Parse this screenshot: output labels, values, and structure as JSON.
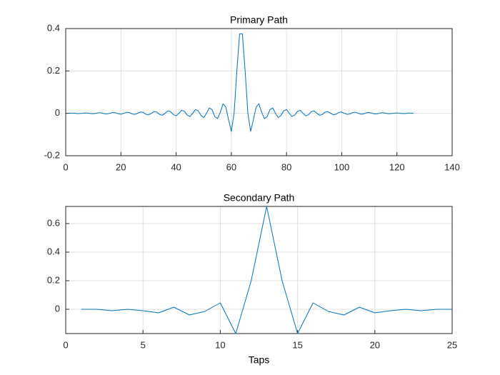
{
  "chart_data": [
    {
      "type": "line",
      "title": "Primary Path",
      "color": "#0072bd",
      "grid": true,
      "xlim": [
        0,
        140
      ],
      "xticks": [
        0,
        20,
        40,
        60,
        80,
        100,
        120,
        140
      ],
      "ylim": [
        -0.2,
        0.4
      ],
      "yticks": [
        -0.2,
        0,
        0.2,
        0.4
      ],
      "x": [
        1,
        2,
        3,
        4,
        5,
        6,
        7,
        8,
        9,
        10,
        11,
        12,
        13,
        14,
        15,
        16,
        17,
        18,
        19,
        20,
        21,
        22,
        23,
        24,
        25,
        26,
        27,
        28,
        29,
        30,
        31,
        32,
        33,
        34,
        35,
        36,
        37,
        38,
        39,
        40,
        41,
        42,
        43,
        44,
        45,
        46,
        47,
        48,
        49,
        50,
        51,
        52,
        53,
        54,
        55,
        56,
        57,
        58,
        59,
        60,
        61,
        62,
        63,
        64,
        65,
        66,
        67,
        68,
        69,
        70,
        71,
        72,
        73,
        74,
        75,
        76,
        77,
        78,
        79,
        80,
        81,
        82,
        83,
        84,
        85,
        86,
        87,
        88,
        89,
        90,
        91,
        92,
        93,
        94,
        95,
        96,
        97,
        98,
        99,
        100,
        101,
        102,
        103,
        104,
        105,
        106,
        107,
        108,
        109,
        110,
        111,
        112,
        113,
        114,
        115,
        116,
        117,
        118,
        119,
        120,
        121,
        122,
        123,
        124,
        125,
        126
      ],
      "values": [
        0,
        0.001,
        0.001,
        -0.001,
        -0.001,
        0,
        0.002,
        0.001,
        -0.001,
        -0.002,
        0,
        0.003,
        0.002,
        -0.002,
        -0.003,
        0,
        0.004,
        0.003,
        -0.002,
        -0.004,
        0,
        0.005,
        0.004,
        -0.003,
        -0.005,
        0,
        0.006,
        0.005,
        -0.004,
        -0.007,
        0,
        0.008,
        0.006,
        -0.005,
        -0.009,
        0,
        0.011,
        0.008,
        -0.006,
        -0.012,
        0,
        0.014,
        0.01,
        -0.008,
        -0.015,
        0,
        0.018,
        0.012,
        -0.01,
        -0.02,
        0,
        0.025,
        0.018,
        -0.015,
        -0.025,
        0.005,
        0.045,
        0.03,
        -0.03,
        -0.085,
        0,
        0.2,
        0.375,
        0.375,
        0.2,
        0,
        -0.085,
        -0.03,
        0.03,
        0.045,
        0.005,
        -0.025,
        -0.015,
        0.018,
        0.025,
        0,
        -0.02,
        -0.01,
        0.012,
        0.018,
        0,
        -0.015,
        -0.008,
        0.01,
        0.014,
        0,
        -0.012,
        -0.006,
        0.008,
        0.011,
        0,
        -0.009,
        -0.005,
        0.006,
        0.008,
        0,
        -0.007,
        -0.004,
        0.005,
        0.006,
        0,
        -0.005,
        -0.003,
        0.004,
        0.005,
        0,
        -0.004,
        -0.002,
        0.003,
        0.004,
        0,
        -0.003,
        -0.002,
        0.002,
        0.003,
        0,
        -0.002,
        -0.001,
        0.001,
        0.002,
        0,
        -0.001,
        -0.001,
        0.001,
        0.001,
        0
      ]
    },
    {
      "type": "line",
      "title": "Secondary Path",
      "x_label": "Taps",
      "color": "#0072bd",
      "grid": true,
      "xlim": [
        0,
        25
      ],
      "xticks": [
        0,
        5,
        10,
        15,
        20,
        25
      ],
      "ylim": [
        -0.17,
        0.72
      ],
      "yticks": [
        0,
        0.2,
        0.4,
        0.6
      ],
      "x": [
        1,
        2,
        3,
        4,
        5,
        6,
        7,
        8,
        9,
        10,
        11,
        12,
        13,
        14,
        15,
        16,
        17,
        18,
        19,
        20,
        21,
        22,
        23,
        24,
        25
      ],
      "values": [
        0,
        0,
        -0.01,
        0,
        -0.01,
        -0.025,
        0.015,
        -0.04,
        -0.015,
        0.045,
        -0.17,
        0.2,
        0.72,
        0.2,
        -0.17,
        0.045,
        -0.015,
        -0.04,
        0.015,
        -0.025,
        -0.01,
        0,
        -0.01,
        0,
        0
      ]
    }
  ]
}
